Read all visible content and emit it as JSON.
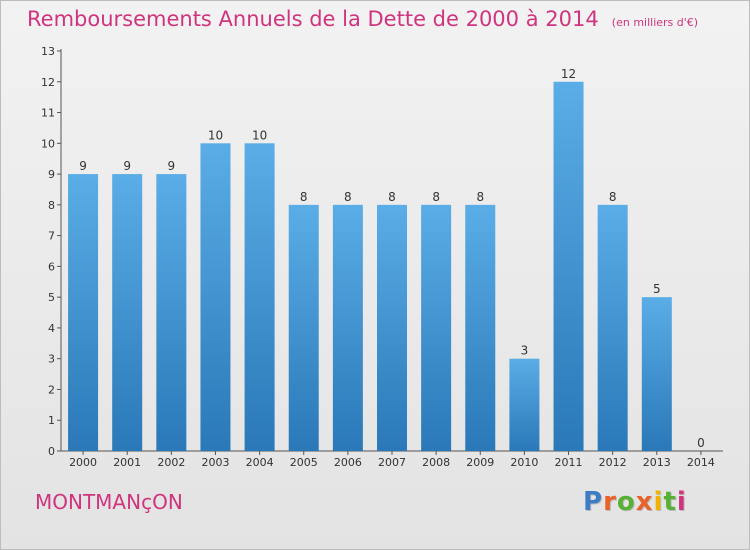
{
  "chart_data": {
    "type": "bar",
    "title": "Remboursements Annuels de la Dette de 2000 à 2014",
    "subtitle": "(en milliers d'€)",
    "categories": [
      "2000",
      "2001",
      "2002",
      "2003",
      "2004",
      "2005",
      "2006",
      "2007",
      "2008",
      "2009",
      "2010",
      "2011",
      "2012",
      "2013",
      "2014"
    ],
    "values": [
      9,
      9,
      9,
      10,
      10,
      8,
      8,
      8,
      8,
      8,
      3,
      12,
      8,
      5,
      0
    ],
    "ylim": [
      0,
      13
    ],
    "yticks": [
      "0",
      "1",
      "2",
      "3",
      "4",
      "5",
      "6",
      "7",
      "8",
      "9",
      "10",
      "11",
      "12",
      "13"
    ],
    "xlabel": "",
    "ylabel": "",
    "grid": false,
    "colors": {
      "bar_light": "#5aade6",
      "bar_dark": "#2a78b8",
      "title": "#d0347e"
    }
  },
  "commune": "MONTMANçON",
  "brand": {
    "letters": [
      "P",
      "r",
      "o",
      "x",
      "i",
      "t",
      "i"
    ],
    "colors": [
      "#3b7cc4",
      "#e8632a",
      "#58b135",
      "#e8632a",
      "#f0b400",
      "#58b135",
      "#d0347e"
    ]
  }
}
